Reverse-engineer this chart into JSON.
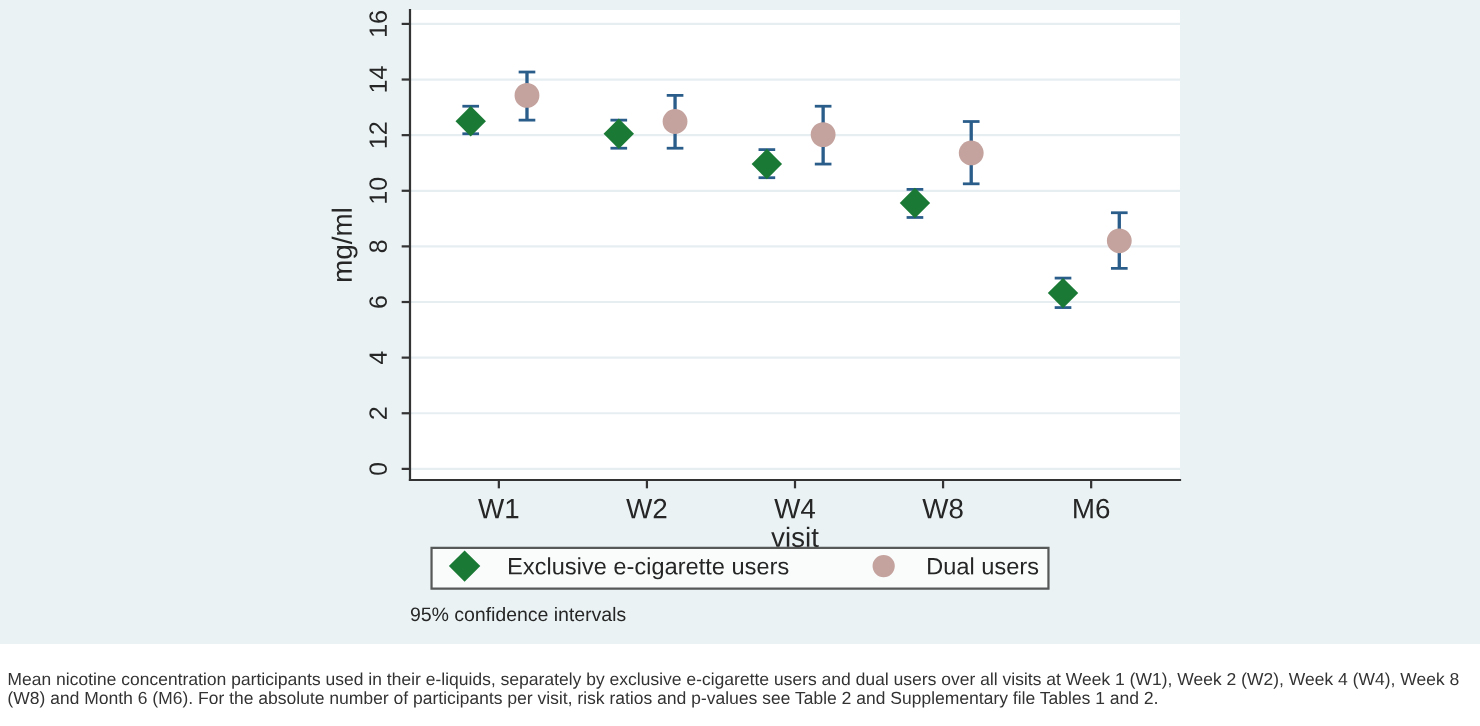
{
  "chart_data": {
    "type": "scatter",
    "xlabel": "visit",
    "ylabel": "mg/ml",
    "categories": [
      "W1",
      "W2",
      "W4",
      "W8",
      "M6"
    ],
    "ylim": [
      -0.4,
      16.5
    ],
    "yticks": [
      0,
      2,
      4,
      6,
      8,
      10,
      12,
      14,
      16
    ],
    "grid": "y",
    "legend": "bottom",
    "series": [
      {
        "name": "Exclusive e-cigarette users",
        "color": "#1a7a35",
        "marker": "diamond",
        "values": [
          12.5,
          12.05,
          10.96,
          9.56,
          6.32
        ],
        "errors": [
          [
            12.05,
            13.04
          ],
          [
            11.53,
            12.54
          ],
          [
            10.47,
            11.48
          ],
          [
            9.04,
            10.05
          ],
          [
            5.8,
            6.86
          ]
        ]
      },
      {
        "name": "Dual users",
        "color": "#c4a29e",
        "marker": "circle",
        "values": [
          13.43,
          12.49,
          12.02,
          11.36,
          8.2
        ],
        "errors": [
          [
            12.54,
            14.27
          ],
          [
            11.53,
            13.43
          ],
          [
            10.96,
            13.04
          ],
          [
            10.25,
            12.49
          ],
          [
            7.21,
            9.21
          ]
        ]
      }
    ],
    "annotations": [
      "95% confidence intervals",
      "Mean nicotine concentration participants used in their e-liquids, separately by exclusive e-cigarette users and dual users over all visits at Week 1 (W1), Week 2 (W2), Week 4 (W4), Week 8 (W8) and Month 6 (M6). For the absolute number of participants per visit, risk ratios and p-values see Table 2 and Supplementary file Tables 1 and 2."
    ]
  }
}
